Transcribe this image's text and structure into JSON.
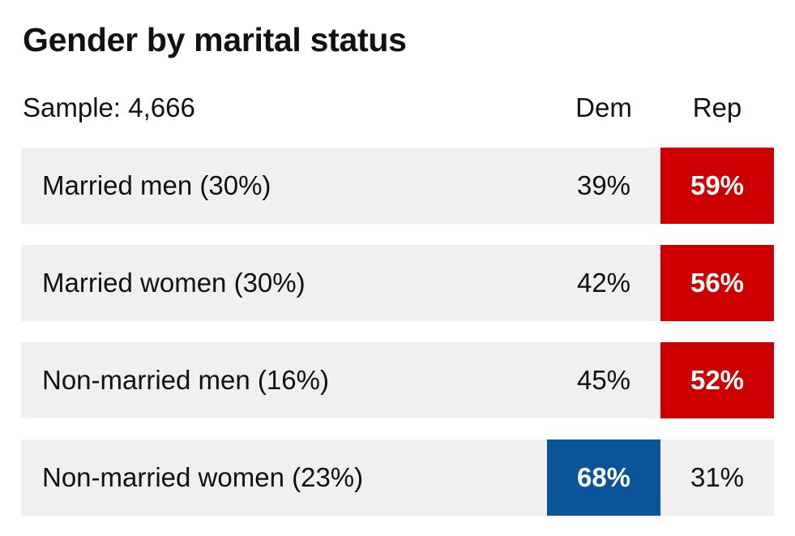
{
  "chart_data": {
    "type": "table",
    "title": "Gender by marital status",
    "sample": "Sample: 4,666",
    "columns": [
      "Dem",
      "Rep"
    ],
    "colors": {
      "Dem": "#0a5499",
      "Rep": "#cc0000"
    },
    "rows": [
      {
        "label": "Married men (30%)",
        "dem": "39%",
        "rep": "59%",
        "winner": "rep"
      },
      {
        "label": "Married women (30%)",
        "dem": "42%",
        "rep": "56%",
        "winner": "rep"
      },
      {
        "label": "Non-married men (16%)",
        "dem": "45%",
        "rep": "52%",
        "winner": "rep"
      },
      {
        "label": "Non-married women (23%)",
        "dem": "68%",
        "rep": "31%",
        "winner": "dem"
      }
    ]
  }
}
